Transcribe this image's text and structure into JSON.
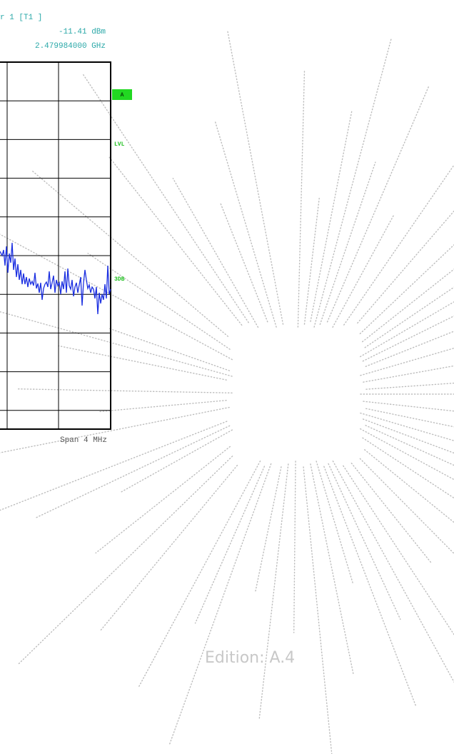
{
  "marker": {
    "label": "r 1 [T1 ]",
    "level": "-11.41 dBm",
    "frequency": "2.479984000 GHz"
  },
  "side_labels": {
    "a": "A",
    "lvl": "LVL",
    "db3": "3DB"
  },
  "span": "Span 4 MHz",
  "edition": "Edition: A.4"
}
